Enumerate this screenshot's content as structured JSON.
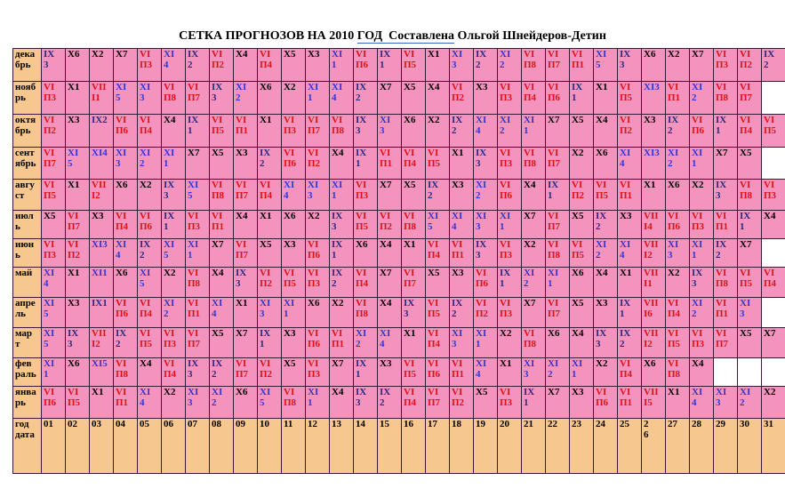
{
  "title": {
    "part1": "СЕТКА ПРОГНОЗОВ НА 2010 ",
    "part2_underlined": "ГОД  Составлена",
    "part3": " Ольгой Шнейдеров-Детин"
  },
  "colors": {
    "day_cell_background": "#f494be",
    "label_cell_background": "#f6c78f",
    "grid_border": "#3a1a38",
    "code_VI_VII": "#df1215",
    "code_XI": "#3136d6",
    "code_IX": "#2a2a80",
    "code_X": "#000000",
    "title_underline": "#3b62c9"
  },
  "grid": {
    "months": [
      {
        "label": "дека\nбрь",
        "cells": [
          "IX\n3",
          "X6",
          "X2",
          "X7",
          "VI\nП3",
          "XI\n4",
          "IX\n2",
          "VI\nП2",
          "X4",
          "VI\nП4",
          "X5",
          "X3",
          "XI\n1",
          "VI\nП6",
          "IX\n1",
          "VI\nП5",
          "X1",
          "XI\n3",
          "IX\n2",
          "XI\n2",
          "VI\nП8",
          "VI\nП7",
          "VI\nП1",
          "XI\n5",
          "IX\n3",
          "X6",
          "X2",
          "X7",
          "VI\nП3",
          "VI\nП2",
          "IX\n2"
        ]
      },
      {
        "label": "нояб\nрь",
        "cells": [
          "VI\nП3",
          "X1",
          "VII\nI1",
          "XI\n5",
          "XI\n3",
          "VI\nП8",
          "VI\nП7",
          "IX\n3",
          "XI\n2",
          "X6",
          "X2",
          "XI\n1",
          "XI\n4",
          "IX\n2",
          "X7",
          "X5",
          "X4",
          "VI\nП2",
          "X3",
          "VI\nП3",
          "VI\nП4",
          "VI\nП6",
          "IX\n1",
          "X1",
          "VI\nП5",
          "XI3",
          "VI\nП1",
          "XI\n2",
          "VI\nП8",
          "VI\nП7",
          null
        ]
      },
      {
        "label": "октя\nбрь",
        "cells": [
          "VI\nП2",
          "X3",
          "IX2",
          "VI\nП6",
          "VI\nП4",
          "X4",
          "IX\n1",
          "VI\nП5",
          "VI\nП1",
          "X1",
          "VI\nП3",
          "VI\nП7",
          "VI\nП8",
          "IX\n3",
          "XI\n3",
          "X6",
          "X2",
          "IX\n2",
          "XI\n4",
          "XI\n2",
          "XI\n1",
          "X7",
          "X5",
          "X4",
          "VI\nП2",
          "X3",
          "IX\n2",
          "VI\nП6",
          "IX\n1",
          "VI\nП4",
          "VI\nП5"
        ]
      },
      {
        "label": "сент\nябрь",
        "cells": [
          "VI\nП7",
          "XI\n5",
          "XI4",
          "XI\n3",
          "XI\n2",
          "XI\n1",
          "X7",
          "X5",
          "X3",
          "IX\n2",
          "VI\nП6",
          "VI\nП2",
          "X4",
          "IX\n1",
          "VI\nП1",
          "VI\nП4",
          "VI\nП5",
          "X1",
          "IX\n3",
          "VI\nП3",
          "VI\nП8",
          "VI\nП7",
          "X2",
          "X6",
          "XI\n4",
          "XI3",
          "XI\n2",
          "XI\n1",
          "X7",
          "X5",
          null
        ]
      },
      {
        "label": "авгу\nст",
        "cells": [
          "VI\nП5",
          "X1",
          "VII\nI2",
          "X6",
          "X2",
          "IX\n3",
          "XI\n5",
          "VI\nП8",
          "VI\nП7",
          "VI\nП4",
          "XI\n4",
          "XI\n3",
          "XI\n1",
          "VI\nП3",
          "X7",
          "X5",
          "IX\n2",
          "X3",
          "XI\n2",
          "VI\nП6",
          "X4",
          "IX\n1",
          "VI\nП2",
          "VI\nП5",
          "VI\nП1",
          "X1",
          "X6",
          "X2",
          "IX\n3",
          "VI\nП8",
          "VI\nП3"
        ]
      },
      {
        "label": "июл\nь",
        "cells": [
          "X5",
          "VI\nП7",
          "X3",
          "VI\nП4",
          "VI\nП6",
          "IX\n1",
          "VI\nП3",
          "VI\nП1",
          "X4",
          "X1",
          "X6",
          "X2",
          "IX\n3",
          "VI\nП5",
          "VI\nП2",
          "VI\nП8",
          "XI\n5",
          "XI\n4",
          "XI\n3",
          "XI\n1",
          "X7",
          "VI\nП7",
          "X5",
          "IX\n2",
          "X3",
          "VII\nI4",
          "VI\nП6",
          "VI\nП3",
          "VI\nП1",
          "IX\n1",
          "X4"
        ]
      },
      {
        "label": "июн\nь",
        "cells": [
          "VI\nП3",
          "VI\nП2",
          "XI3",
          "XI\n4",
          "IX\n2",
          "XI\n5",
          "XI\n1",
          "X7",
          "VI\nП7",
          "X5",
          "X3",
          "VI\nП6",
          "IX\n1",
          "X6",
          "X4",
          "X1",
          "VI\nП4",
          "VI\nП1",
          "IX\n3",
          "VI\nП3",
          "X2",
          "VI\nП8",
          "VI\nП5",
          "XI\n2",
          "XI\n4",
          "VII\nI2",
          "XI\n3",
          "XI\n1",
          "IX\n2",
          "X7",
          null
        ]
      },
      {
        "label": "май",
        "cells": [
          "XI\n4",
          "X1",
          "XI1",
          "X6",
          "XI\n5",
          "X2",
          "VI\nП8",
          "X4",
          "IX\n3",
          "VI\nП2",
          "VI\nП5",
          "VI\nП3",
          "IX\n2",
          "VI\nП4",
          "X7",
          "VI\nП7",
          "X5",
          "X3",
          "VI\nП6",
          "IX\n1",
          "XI\n2",
          "XI\n1",
          "X6",
          "X4",
          "X1",
          "VII\nI1",
          "X2",
          "IX\n3",
          "VI\nП8",
          "VI\nП5",
          "VI\nП4"
        ]
      },
      {
        "label": "апре\nль",
        "cells": [
          "XI\n5",
          "X3",
          "IX1",
          "VI\nП6",
          "VI\nП4",
          "XI\n2",
          "VI\nП1",
          "XI\n4",
          "X1",
          "XI\n3",
          "XI\n1",
          "X6",
          "X2",
          "VI\nП8",
          "X4",
          "IX\n3",
          "VI\nП5",
          "IX\n2",
          "VI\nП2",
          "VI\nП3",
          "X7",
          "VI\nП7",
          "X5",
          "X3",
          "IX\n1",
          "VII\nI6",
          "VI\nП4",
          "XI\n2",
          "VI\nП1",
          "XI\n3",
          null
        ]
      },
      {
        "label": "мар\nт",
        "cells": [
          "XI\n5",
          "IX\n3",
          "VII\nI2",
          "IX\n2",
          "VI\nП5",
          "VI\nП3",
          "VI\nП7",
          "X5",
          "X7",
          "IX\n1",
          "X3",
          "VI\nП6",
          "VI\nП1",
          "XI\n2",
          "XI\n4",
          "X1",
          "VI\nП4",
          "XI\n3",
          "XI\n1",
          "X2",
          "VI\nП8",
          "X6",
          "X4",
          "IX\n3",
          "IX\n2",
          "VII\nI2",
          "VI\nП5",
          "VI\nП3",
          "VI\nП7",
          "X5",
          "X7"
        ]
      },
      {
        "label": "фев\nраль",
        "cells": [
          "XI\n1",
          "X6",
          "XI5",
          "VI\nП8",
          "X4",
          "VI\nП4",
          "IX\n3",
          "IX\n2",
          "VI\nП7",
          "VI\nП2",
          "X5",
          "VI\nП3",
          "X7",
          "IX\n1",
          "X3",
          "VI\nП5",
          "VI\nП6",
          "VI\nП1",
          "XI\n4",
          "X1",
          "XI\n3",
          "XI\n2",
          "XI\n1",
          "X2",
          "VI\nП4",
          "X6",
          "VI\nП8",
          "X4",
          null,
          null,
          null
        ]
      },
      {
        "label": "янва\nрь",
        "cells": [
          "VI\nП6",
          "VI\nП5",
          "X1",
          "VI\nП1",
          "XI\n4",
          "X2",
          "XI\n3",
          "XI\n2",
          "X6",
          "XI\n5",
          "VI\nП8",
          "XI\n1",
          "X4",
          "IX\n3",
          "IX\n2",
          "VI\nП4",
          "VI\nП7",
          "VI\nП2",
          "X5",
          "VI\nП3",
          "IX\n1",
          "X7",
          "X3",
          "VI\nП6",
          "VI\nП1",
          "VII\nI5",
          "X1",
          "XI\n4",
          "XI\n3",
          "XI\n2",
          "X2"
        ]
      }
    ],
    "date_row": {
      "label": "год\nдата",
      "dates": [
        "01",
        "02",
        "03",
        "04",
        "05",
        "06",
        "07",
        "08",
        "09",
        "10",
        "11",
        "12",
        "13",
        "14",
        "15",
        "16",
        "17",
        "18",
        "19",
        "20",
        "21",
        "22",
        "23",
        "24",
        "25",
        "2\n6",
        "27",
        "28",
        "29",
        "30",
        "31"
      ]
    }
  }
}
